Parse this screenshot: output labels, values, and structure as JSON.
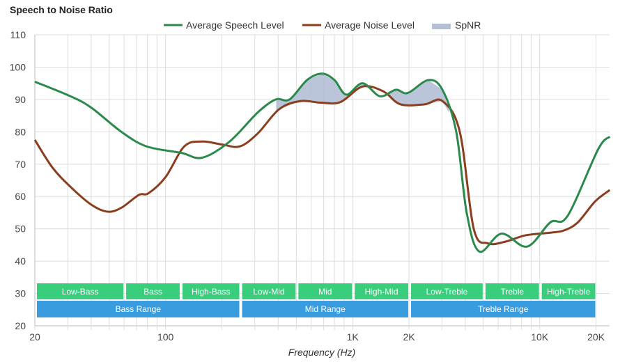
{
  "chart_data": {
    "type": "line",
    "title": "Speech to Noise Ratio",
    "xlabel": "Frequency (Hz)",
    "ylabel": "",
    "xscale": "log",
    "xlim": [
      20,
      23700
    ],
    "ylim": [
      20,
      110
    ],
    "yticks": [
      20,
      30,
      40,
      50,
      60,
      70,
      80,
      90,
      100,
      110
    ],
    "xticks": [
      {
        "v": 20,
        "label": "20"
      },
      {
        "v": 100,
        "label": "100"
      },
      {
        "v": 1000,
        "label": "1K"
      },
      {
        "v": 2000,
        "label": "2K"
      },
      {
        "v": 10000,
        "label": "10K"
      },
      {
        "v": 20000,
        "label": "20K"
      }
    ],
    "grid": true,
    "legend": {
      "placement": "top-center",
      "entries": [
        "Average Speech Level",
        "Average Noise Level",
        "SpNR"
      ]
    },
    "series": [
      {
        "name": "Average Speech Level",
        "color": "#2b8a4b",
        "points": [
          [
            20,
            95.5
          ],
          [
            31,
            91
          ],
          [
            40,
            87.5
          ],
          [
            58,
            80
          ],
          [
            79,
            75.5
          ],
          [
            121,
            73.5
          ],
          [
            157,
            72
          ],
          [
            220,
            77
          ],
          [
            311,
            86
          ],
          [
            388,
            90
          ],
          [
            460,
            90
          ],
          [
            570,
            96
          ],
          [
            686,
            98
          ],
          [
            800,
            96
          ],
          [
            925,
            91.5
          ],
          [
            1130,
            95
          ],
          [
            1400,
            91
          ],
          [
            1700,
            93
          ],
          [
            1970,
            92
          ],
          [
            2540,
            96
          ],
          [
            3020,
            93
          ],
          [
            3580,
            80
          ],
          [
            4070,
            55
          ],
          [
            4750,
            43
          ],
          [
            6250,
            48.5
          ],
          [
            8560,
            44.5
          ],
          [
            11400,
            52
          ],
          [
            14100,
            54
          ],
          [
            20500,
            74.5
          ],
          [
            23700,
            78.5
          ]
        ]
      },
      {
        "name": "Average Noise Level",
        "color": "#8b3e1e",
        "points": [
          [
            20,
            77.5
          ],
          [
            24.8,
            69
          ],
          [
            31,
            63
          ],
          [
            40,
            57.5
          ],
          [
            49,
            55.3
          ],
          [
            58,
            56.5
          ],
          [
            72,
            60.5
          ],
          [
            81,
            61
          ],
          [
            100,
            66
          ],
          [
            126,
            75.5
          ],
          [
            157,
            77
          ],
          [
            203,
            76
          ],
          [
            250,
            75.5
          ],
          [
            311,
            79.5
          ],
          [
            405,
            87
          ],
          [
            525,
            89.5
          ],
          [
            675,
            89
          ],
          [
            860,
            89.2
          ],
          [
            1130,
            94
          ],
          [
            1460,
            92.5
          ],
          [
            1800,
            88.5
          ],
          [
            2430,
            88.5
          ],
          [
            3020,
            89.5
          ],
          [
            3740,
            80
          ],
          [
            4440,
            50
          ],
          [
            5280,
            45.5
          ],
          [
            6530,
            46
          ],
          [
            8420,
            48
          ],
          [
            11400,
            48.8
          ],
          [
            13500,
            49.5
          ],
          [
            16000,
            52
          ],
          [
            19800,
            58.5
          ],
          [
            23700,
            62
          ]
        ]
      }
    ],
    "spnr": {
      "name": "SpNR",
      "color": "#b3bfd5",
      "range": [
        390,
        3300
      ]
    },
    "bands": [
      {
        "label": "Low-Bass",
        "from": 20,
        "to": 60
      },
      {
        "label": "Bass",
        "from": 60,
        "to": 120
      },
      {
        "label": "High-Bass",
        "from": 120,
        "to": 250
      },
      {
        "label": "Low-Mid",
        "from": 250,
        "to": 500
      },
      {
        "label": "Mid",
        "from": 500,
        "to": 1000
      },
      {
        "label": "High-Mid",
        "from": 1000,
        "to": 2000
      },
      {
        "label": "Low-Treble",
        "from": 2000,
        "to": 5000
      },
      {
        "label": "Treble",
        "from": 5000,
        "to": 10000
      },
      {
        "label": "High-Treble",
        "from": 10000,
        "to": 20000
      }
    ],
    "ranges": [
      {
        "label": "Bass Range",
        "from": 20,
        "to": 250
      },
      {
        "label": "Mid Range",
        "from": 250,
        "to": 2000
      },
      {
        "label": "Treble Range",
        "from": 2000,
        "to": 20000
      }
    ],
    "band_color": "#33cc77",
    "range_color": "#3399dd"
  }
}
